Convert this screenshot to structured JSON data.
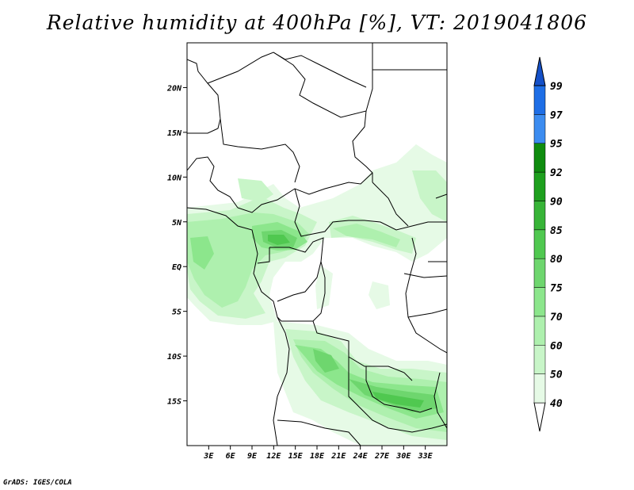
{
  "title": "Relative humidity at 400hPa [%], VT: 2019041806",
  "footer": "GrADS: IGES/COLA",
  "map": {
    "lon_range": [
      0,
      36
    ],
    "lat_range": [
      -20,
      25
    ],
    "lat_ticks": [
      {
        "value": 20,
        "label": "20N"
      },
      {
        "value": 15,
        "label": "15N"
      },
      {
        "value": 10,
        "label": "10N"
      },
      {
        "value": 5,
        "label": "5N"
      },
      {
        "value": 0,
        "label": "EQ"
      },
      {
        "value": -5,
        "label": "5S"
      },
      {
        "value": -10,
        "label": "10S"
      },
      {
        "value": -15,
        "label": "15S"
      }
    ],
    "lon_ticks": [
      {
        "value": 3,
        "label": "3E"
      },
      {
        "value": 6,
        "label": "6E"
      },
      {
        "value": 9,
        "label": "9E"
      },
      {
        "value": 12,
        "label": "12E"
      },
      {
        "value": 15,
        "label": "15E"
      },
      {
        "value": 18,
        "label": "18E"
      },
      {
        "value": 21,
        "label": "21E"
      },
      {
        "value": 24,
        "label": "24E"
      },
      {
        "value": 27,
        "label": "27E"
      },
      {
        "value": 30,
        "label": "30E"
      },
      {
        "value": 33,
        "label": "33E"
      }
    ]
  },
  "colorbar": {
    "levels": [
      40,
      50,
      60,
      70,
      75,
      80,
      85,
      90,
      92,
      95,
      97,
      99
    ],
    "colors": [
      "#ffffff",
      "#e6fae6",
      "#c8f5c8",
      "#aef0ae",
      "#8ce68c",
      "#6ed66e",
      "#50c850",
      "#37b437",
      "#1ea01e",
      "#0f8c0f",
      "#3c8cf0",
      "#1e6ee6",
      "#1450c8"
    ]
  }
}
